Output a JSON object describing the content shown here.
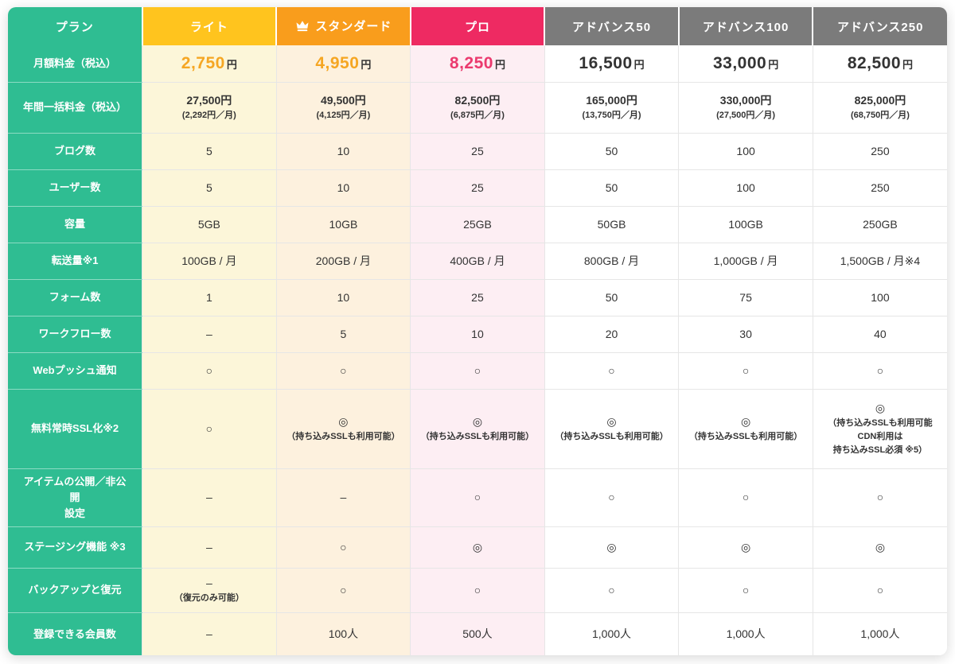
{
  "colors": {
    "teal": "#2FBD92",
    "header_light": "#FFC41E",
    "header_standard": "#F99D1C",
    "header_pro": "#EE2A62",
    "header_advance": "#7B7B7B",
    "col_light_bg": "#FCF6D9",
    "col_standard_bg": "#FDF1DE",
    "col_pro_bg": "#FDEEF3",
    "col_advance_bg": "#FFFFFF",
    "price_gold": "#F5A623",
    "price_pink": "#EB3A6E",
    "price_dark": "#333333",
    "grid": "#E6E6E6"
  },
  "chart_data": {
    "type": "table",
    "header": {
      "plan_label": "プラン",
      "columns": [
        {
          "id": "light",
          "label": "ライト",
          "crown": false
        },
        {
          "id": "standard",
          "label": "スタンダード",
          "crown": true
        },
        {
          "id": "pro",
          "label": "プロ",
          "crown": false
        },
        {
          "id": "advance50",
          "label": "アドバンス50",
          "crown": false
        },
        {
          "id": "advance100",
          "label": "アドバンス100",
          "crown": false
        },
        {
          "id": "advance250",
          "label": "アドバンス250",
          "crown": false
        }
      ]
    },
    "rows": [
      {
        "id": "monthly-fee",
        "label": "月額料金（税込）",
        "type": "price",
        "cells": [
          {
            "num": "2,750",
            "unit": "円",
            "tone": "gold"
          },
          {
            "num": "4,950",
            "unit": "円",
            "tone": "gold"
          },
          {
            "num": "8,250",
            "unit": "円",
            "tone": "pink"
          },
          {
            "num": "16,500",
            "unit": "円",
            "tone": "dark"
          },
          {
            "num": "33,000",
            "unit": "円",
            "tone": "dark"
          },
          {
            "num": "82,500",
            "unit": "円",
            "tone": "dark"
          }
        ]
      },
      {
        "id": "annual-fee",
        "label": "年間一括料金（税込）",
        "cells": [
          {
            "text": "27,500円",
            "bold": true,
            "sub": [
              "(2,292円／月)"
            ]
          },
          {
            "text": "49,500円",
            "bold": true,
            "sub": [
              "(4,125円／月)"
            ]
          },
          {
            "text": "82,500円",
            "bold": true,
            "sub": [
              "(6,875円／月)"
            ]
          },
          {
            "text": "165,000円",
            "bold": true,
            "sub": [
              "(13,750円／月)"
            ]
          },
          {
            "text": "330,000円",
            "bold": true,
            "sub": [
              "(27,500円／月)"
            ]
          },
          {
            "text": "825,000円",
            "bold": true,
            "sub": [
              "(68,750円／月)"
            ]
          }
        ]
      },
      {
        "id": "blog-count",
        "label": "ブログ数",
        "cells": [
          {
            "text": "5"
          },
          {
            "text": "10"
          },
          {
            "text": "25"
          },
          {
            "text": "50"
          },
          {
            "text": "100"
          },
          {
            "text": "250"
          }
        ]
      },
      {
        "id": "user-count",
        "label": "ユーザー数",
        "cells": [
          {
            "text": "5"
          },
          {
            "text": "10"
          },
          {
            "text": "25"
          },
          {
            "text": "50"
          },
          {
            "text": "100"
          },
          {
            "text": "250"
          }
        ]
      },
      {
        "id": "storage",
        "label": "容量",
        "cells": [
          {
            "text": "5GB"
          },
          {
            "text": "10GB"
          },
          {
            "text": "25GB"
          },
          {
            "text": "50GB"
          },
          {
            "text": "100GB"
          },
          {
            "text": "250GB"
          }
        ]
      },
      {
        "id": "transfer",
        "label": "転送量※1",
        "cells": [
          {
            "text": "100GB / 月"
          },
          {
            "text": "200GB / 月"
          },
          {
            "text": "400GB / 月"
          },
          {
            "text": "800GB / 月"
          },
          {
            "text": "1,000GB / 月"
          },
          {
            "text": "1,500GB / 月※4"
          }
        ]
      },
      {
        "id": "form-count",
        "label": "フォーム数",
        "cells": [
          {
            "text": "1"
          },
          {
            "text": "10"
          },
          {
            "text": "25"
          },
          {
            "text": "50"
          },
          {
            "text": "75"
          },
          {
            "text": "100"
          }
        ]
      },
      {
        "id": "workflow-count",
        "label": "ワークフロー数",
        "cells": [
          {
            "text": "–"
          },
          {
            "text": "5"
          },
          {
            "text": "10"
          },
          {
            "text": "20"
          },
          {
            "text": "30"
          },
          {
            "text": "40"
          }
        ]
      },
      {
        "id": "web-push",
        "label": "Webプッシュ通知",
        "cells": [
          {
            "text": "○"
          },
          {
            "text": "○"
          },
          {
            "text": "○"
          },
          {
            "text": "○"
          },
          {
            "text": "○"
          },
          {
            "text": "○"
          }
        ]
      },
      {
        "id": "free-ssl",
        "label": "無料常時SSL化※2",
        "cells": [
          {
            "text": "○"
          },
          {
            "text": "◎",
            "sub": [
              "（持ち込みSSLも利用可能）"
            ]
          },
          {
            "text": "◎",
            "sub": [
              "（持ち込みSSLも利用可能）"
            ]
          },
          {
            "text": "◎",
            "sub": [
              "（持ち込みSSLも利用可能）"
            ]
          },
          {
            "text": "◎",
            "sub": [
              "（持ち込みSSLも利用可能）"
            ]
          },
          {
            "text": "◎",
            "sub": [
              "（持ち込みSSLも利用可能",
              "CDN利用は",
              "持ち込みSSL必須 ※5）"
            ]
          }
        ]
      },
      {
        "id": "item-visibility",
        "label": "アイテムの公開／非公開\n設定",
        "cells": [
          {
            "text": "–"
          },
          {
            "text": "–"
          },
          {
            "text": "○"
          },
          {
            "text": "○"
          },
          {
            "text": "○"
          },
          {
            "text": "○"
          }
        ]
      },
      {
        "id": "staging",
        "label": "ステージング機能 ※3",
        "cells": [
          {
            "text": "–"
          },
          {
            "text": "○"
          },
          {
            "text": "◎"
          },
          {
            "text": "◎"
          },
          {
            "text": "◎"
          },
          {
            "text": "◎"
          }
        ]
      },
      {
        "id": "backup-restore",
        "label": "バックアップと復元",
        "cells": [
          {
            "text": "–",
            "sub": [
              "（復元のみ可能）"
            ]
          },
          {
            "text": "○"
          },
          {
            "text": "○"
          },
          {
            "text": "○"
          },
          {
            "text": "○"
          },
          {
            "text": "○"
          }
        ]
      },
      {
        "id": "member-count",
        "label": "登録できる会員数",
        "cells": [
          {
            "text": "–"
          },
          {
            "text": "100人"
          },
          {
            "text": "500人"
          },
          {
            "text": "1,000人"
          },
          {
            "text": "1,000人"
          },
          {
            "text": "1,000人"
          }
        ]
      }
    ]
  }
}
